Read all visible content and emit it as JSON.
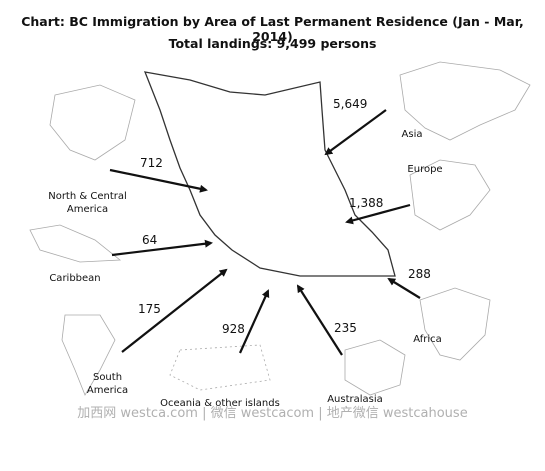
{
  "chart_data": {
    "type": "flow-map",
    "title": "Chart: BC Immigration by Area of Last Permanent Residence (Jan - Mar, 2014)",
    "subtitle": "Total landings: 9,499 persons",
    "categories": [
      "Asia",
      "Europe",
      "Africa",
      "Australasia",
      "Oceania & other islands",
      "South America",
      "Caribbean",
      "North & Central America"
    ],
    "values": [
      5649,
      1388,
      288,
      235,
      928,
      175,
      64,
      712
    ],
    "value_labels": [
      "5,649",
      "1,388",
      "288",
      "235",
      "928",
      "175",
      "64",
      "712"
    ],
    "watermark": "加西网 westca.com | 微信 westcacom | 地产微信 westcahouse"
  }
}
